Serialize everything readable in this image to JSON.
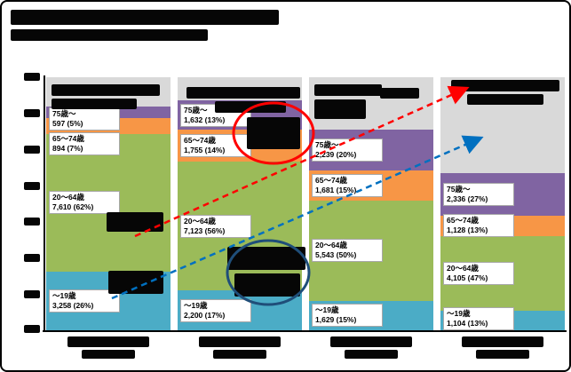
{
  "frame": {
    "border_color": "#000000",
    "background_color": "#ffffff"
  },
  "chart_data": {
    "type": "bar",
    "stacked": true,
    "columns": 4,
    "plot_bg": "#d9d9d9",
    "ylim": [
      0,
      14000
    ],
    "grid": false,
    "categories": [
      "",
      "",
      "",
      ""
    ],
    "series": [
      {
        "key": "age-0-19",
        "name": "～19歳",
        "color": "#4bacc6",
        "values": [
          3258,
          2200,
          1629,
          1104
        ],
        "labels": [
          "3,258 (26%)",
          "2,200 (17%)",
          "1,629 (15%)",
          "1,104 (13%)"
        ]
      },
      {
        "key": "age-20-64",
        "name": "20～64歳",
        "color": "#9bbb59",
        "values": [
          7610,
          7123,
          5543,
          4105
        ],
        "labels": [
          "7,610 (62%)",
          "7,123 (56%)",
          "5,543 (50%)",
          "4,105 (47%)"
        ]
      },
      {
        "key": "age-65-74",
        "name": "65～74歳",
        "color": "#f79646",
        "values": [
          894,
          1755,
          1681,
          1128
        ],
        "labels": [
          "894 (7%)",
          "1,755 (14%)",
          "1,681 (15%)",
          "1,128 (13%)"
        ]
      },
      {
        "key": "age-75plus",
        "name": "75歳～",
        "color": "#8064a2",
        "values": [
          597,
          1632,
          2239,
          2336
        ],
        "labels": [
          "597 (5%)",
          "1,632 (13%)",
          "2,239 (20%)",
          "2,336 (27%)"
        ]
      }
    ],
    "annotations": {
      "red_arrow_color": "#ff0000",
      "blue_arrow_color": "#0070c0",
      "red_circle_color": "#ff0000",
      "blue_circle_color": "#1f4e79"
    }
  }
}
